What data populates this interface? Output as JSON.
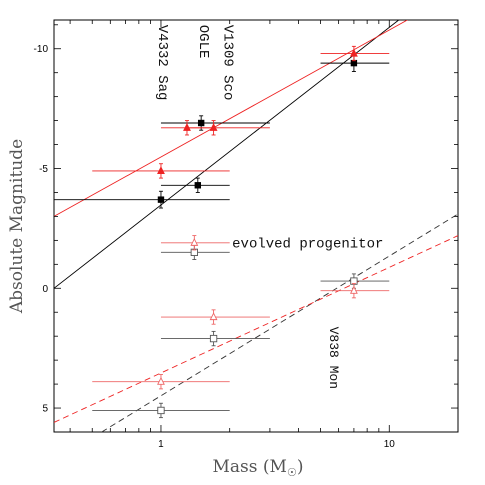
{
  "chart_data": {
    "type": "scatter",
    "title": "",
    "xlabel": "Mass (M",
    "xlabel_suffix": ")",
    "ylabel": "Absolute Magnitude",
    "x_scale": "log",
    "xlim": [
      0.34,
      20
    ],
    "ylim": [
      6,
      -11.2
    ],
    "y_inverted": true,
    "x_ticks": [
      1,
      10
    ],
    "x_tick_labels": [
      "1",
      "10"
    ],
    "y_ticks": [
      -10,
      -5,
      0,
      5
    ],
    "y_tick_labels": [
      "-10",
      "-5",
      "0",
      "5"
    ],
    "grid": false,
    "colors": {
      "black": "#000000",
      "red": "#ee2222",
      "grey": "#555555",
      "light_red": "#ee6666"
    },
    "series": [
      {
        "marker": "filled-square",
        "color": "#000000",
        "points": [
          {
            "x": 1.0,
            "y": -3.7,
            "xerr": [
              0.34,
              2.0
            ],
            "yerr": 0.35
          },
          {
            "x": 1.45,
            "y": -4.3,
            "xerr": [
              1.0,
              2.0
            ],
            "yerr": 0.3
          },
          {
            "x": 1.5,
            "y": -6.9,
            "xerr": [
              1.0,
              3.0
            ],
            "yerr": 0.3
          },
          {
            "x": 7.0,
            "y": -9.4,
            "xerr": [
              5.0,
              10.0
            ],
            "yerr": 0.35
          }
        ]
      },
      {
        "marker": "filled-triangle",
        "color": "#ee2222",
        "points": [
          {
            "x": 1.0,
            "y": -4.9,
            "xerr": [
              0.5,
              2.0
            ],
            "yerr": 0.3
          },
          {
            "x": 1.3,
            "y": -6.7,
            "xerr": [
              1.0,
              1.7
            ],
            "yerr": 0.3
          },
          {
            "x": 1.7,
            "y": -6.7,
            "xerr": [
              1.3,
              3.0
            ],
            "yerr": 0.3
          },
          {
            "x": 7.0,
            "y": -9.8,
            "xerr": [
              5.0,
              10.0
            ],
            "yerr": 0.3
          }
        ]
      },
      {
        "marker": "open-square",
        "color": "#555555",
        "points": [
          {
            "x": 1.4,
            "y": -1.5,
            "xerr": [
              1.0,
              2.0
            ],
            "yerr": 0.3
          },
          {
            "x": 1.7,
            "y": 2.1,
            "xerr": [
              1.0,
              3.0
            ],
            "yerr": 0.3
          },
          {
            "x": 1.0,
            "y": 5.1,
            "xerr": [
              0.5,
              2.0
            ],
            "yerr": 0.3
          },
          {
            "x": 7.0,
            "y": -0.3,
            "xerr": [
              5.0,
              10.0
            ],
            "yerr": 0.3
          }
        ]
      },
      {
        "marker": "open-triangle",
        "color": "#ee6666",
        "points": [
          {
            "x": 1.4,
            "y": -1.9,
            "xerr": [
              1.0,
              2.0
            ],
            "yerr": 0.3
          },
          {
            "x": 1.7,
            "y": 1.2,
            "xerr": [
              1.0,
              3.0
            ],
            "yerr": 0.3
          },
          {
            "x": 1.0,
            "y": 3.9,
            "xerr": [
              0.5,
              2.0
            ],
            "yerr": 0.3
          },
          {
            "x": 7.0,
            "y": 0.1,
            "xerr": [
              5.0,
              10.0
            ],
            "yerr": 0.3
          }
        ]
      }
    ],
    "fit_lines": [
      {
        "style": "solid",
        "color": "#000000",
        "from": [
          0.34,
          0.0
        ],
        "to": [
          11.0,
          -11.2
        ]
      },
      {
        "style": "solid",
        "color": "#ee2222",
        "from": [
          0.34,
          -3.0
        ],
        "to": [
          12.0,
          -11.2
        ]
      },
      {
        "style": "dashed",
        "color": "#333333",
        "from": [
          0.55,
          6.0
        ],
        "to": [
          20.0,
          -3.1
        ]
      },
      {
        "style": "dashed",
        "color": "#ee2222",
        "from": [
          0.34,
          5.6
        ],
        "to": [
          20.0,
          -2.2
        ]
      }
    ],
    "annotations": [
      {
        "text": "V4332 Sag",
        "x": 0.98,
        "y": -11.0,
        "rotate": 90,
        "size": "big"
      },
      {
        "text": "OGLE",
        "x": 1.48,
        "y": -11.0,
        "rotate": 90,
        "size": "big"
      },
      {
        "text": "V1309 Sco",
        "x": 1.9,
        "y": -11.0,
        "rotate": 90,
        "size": "big"
      },
      {
        "text": "evolved progenitor",
        "x": 2.05,
        "y": -1.7,
        "rotate": 0,
        "size": "big"
      },
      {
        "text": "V838 Mon",
        "x": 5.5,
        "y": 1.6,
        "rotate": 90,
        "size": "normal"
      }
    ]
  }
}
